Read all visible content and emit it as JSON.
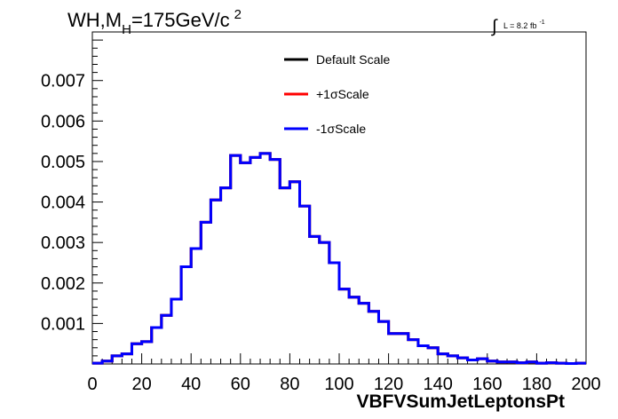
{
  "chart_data": {
    "type": "step-histogram",
    "title": {
      "prefix": "WH,M",
      "subscript": "H",
      "suffix": "=175GeV/c",
      "superscript": "2"
    },
    "lumi": {
      "integral_symbol": "∫",
      "text": "L = 8.2 fb",
      "superscript": "-1"
    },
    "xlabel": "VBFVSumJetLeptonsPt",
    "ylabel": "",
    "xlim": [
      0,
      200
    ],
    "ylim": [
      0,
      0.0082
    ],
    "x_ticks": [
      "0",
      "20",
      "40",
      "60",
      "80",
      "100",
      "120",
      "140",
      "160",
      "180",
      "200"
    ],
    "y_ticks": [
      "0.001",
      "0.002",
      "0.003",
      "0.004",
      "0.005",
      "0.006",
      "0.007"
    ],
    "bin_width": 4,
    "legend_position": "top-center",
    "legend": [
      {
        "label": "Default Scale",
        "color": "#000000"
      },
      {
        "label": "+1σScale",
        "color": "#ff0000"
      },
      {
        "label": "-1σScale",
        "color": "#0000ff"
      }
    ],
    "series": [
      {
        "name": "Default Scale",
        "color": "#000000",
        "values": [
          2e-05,
          7e-05,
          0.0002,
          0.00025,
          0.0005,
          0.00055,
          0.0009,
          0.0012,
          0.0016,
          0.0024,
          0.00285,
          0.0035,
          0.00405,
          0.00435,
          0.00515,
          0.00497,
          0.0051,
          0.0052,
          0.00505,
          0.00435,
          0.0045,
          0.0039,
          0.00315,
          0.003,
          0.0025,
          0.00185,
          0.00165,
          0.0015,
          0.0013,
          0.00105,
          0.00075,
          0.00075,
          0.0006,
          0.00045,
          0.0004,
          0.00025,
          0.0002,
          0.00015,
          0.0001,
          0.00013,
          7e-05,
          5e-05,
          5e-05,
          3e-05,
          5e-05,
          2e-05,
          3e-05,
          2e-05,
          1e-05,
          2e-05
        ]
      },
      {
        "name": "+1σScale",
        "color": "#ff0000",
        "values": [
          2e-05,
          7e-05,
          0.0002,
          0.00025,
          0.0005,
          0.00055,
          0.0009,
          0.0012,
          0.0016,
          0.0024,
          0.00285,
          0.0035,
          0.00405,
          0.00435,
          0.00515,
          0.00497,
          0.0051,
          0.0052,
          0.00505,
          0.00435,
          0.0045,
          0.0039,
          0.00315,
          0.003,
          0.0025,
          0.00185,
          0.00165,
          0.0015,
          0.0013,
          0.00105,
          0.00075,
          0.00075,
          0.0006,
          0.00045,
          0.0004,
          0.00025,
          0.0002,
          0.00015,
          0.0001,
          0.00013,
          7e-05,
          5e-05,
          5e-05,
          3e-05,
          5e-05,
          2e-05,
          3e-05,
          2e-05,
          1e-05,
          2e-05
        ]
      },
      {
        "name": "-1σScale",
        "color": "#0000ff",
        "values": [
          2e-05,
          7e-05,
          0.0002,
          0.00025,
          0.0005,
          0.00055,
          0.0009,
          0.0012,
          0.0016,
          0.0024,
          0.00285,
          0.0035,
          0.00405,
          0.00435,
          0.00515,
          0.00497,
          0.0051,
          0.0052,
          0.00505,
          0.00435,
          0.0045,
          0.0039,
          0.00315,
          0.003,
          0.0025,
          0.00185,
          0.00165,
          0.0015,
          0.0013,
          0.00105,
          0.00075,
          0.00075,
          0.0006,
          0.00045,
          0.0004,
          0.00025,
          0.0002,
          0.00015,
          0.0001,
          0.00013,
          7e-05,
          5e-05,
          5e-05,
          3e-05,
          5e-05,
          2e-05,
          3e-05,
          2e-05,
          1e-05,
          2e-05
        ]
      }
    ]
  }
}
